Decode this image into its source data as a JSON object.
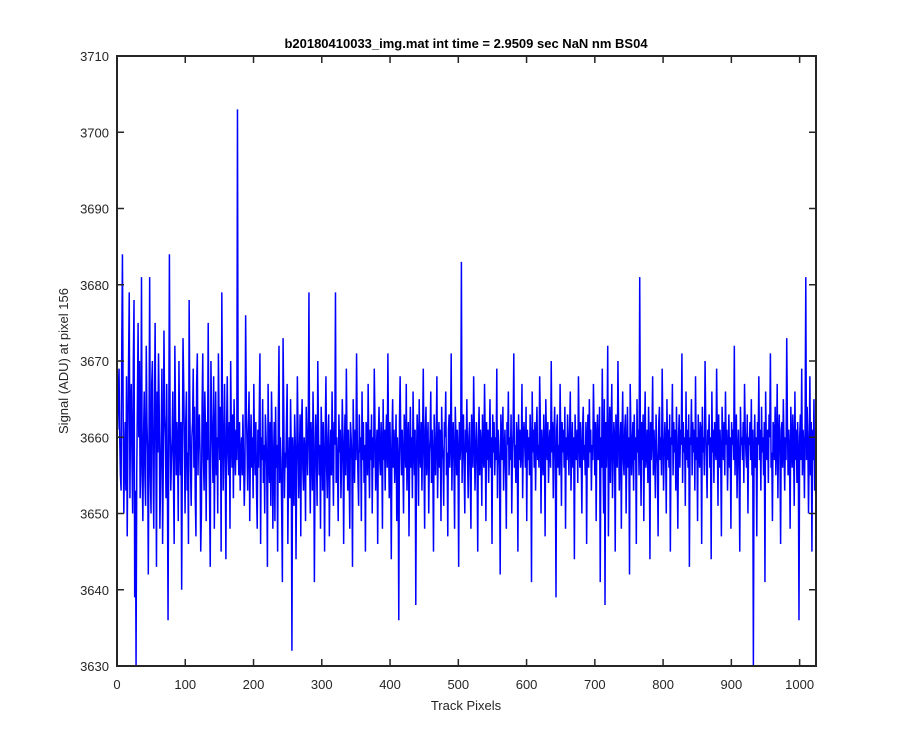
{
  "chart_data": {
    "type": "line",
    "title": "b20180410033_img.mat int time = 2.9509 sec  NaN nm BS04",
    "xlabel": "Track Pixels",
    "ylabel": "Signal (ADU) at pixel 156",
    "xlim": [
      0,
      1024
    ],
    "ylim": [
      3630,
      3710
    ],
    "xticks": [
      0,
      100,
      200,
      300,
      400,
      500,
      600,
      700,
      800,
      900,
      1000
    ],
    "yticks": [
      3630,
      3640,
      3650,
      3660,
      3670,
      3680,
      3690,
      3700,
      3710
    ],
    "grid": false,
    "legend": "none",
    "series": [
      {
        "color": "#0000ff",
        "line_width": 1.5,
        "x_start": 1,
        "x_step": 1,
        "n_points": 1024,
        "values": [
          3661,
          3666,
          3669,
          3660,
          3655,
          3653,
          3672,
          3684,
          3664,
          3650,
          3657,
          3662,
          3653,
          3668,
          3647,
          3660,
          3670,
          3679,
          3652,
          3664,
          3667,
          3657,
          3650,
          3670,
          3678,
          3639,
          3653,
          3630,
          3655,
          3665,
          3675,
          3660,
          3670,
          3652,
          3658,
          3681,
          3655,
          3649,
          3660,
          3666,
          3655,
          3651,
          3672,
          3662,
          3658,
          3642,
          3660,
          3681,
          3655,
          3650,
          3667,
          3670,
          3656,
          3648,
          3663,
          3675,
          3660,
          3643,
          3666,
          3658,
          3671,
          3664,
          3648,
          3654,
          3661,
          3669,
          3646,
          3656,
          3674,
          3663,
          3660,
          3652,
          3667,
          3655,
          3636,
          3659,
          3684,
          3662,
          3653,
          3657,
          3660,
          3666,
          3654,
          3646,
          3672,
          3663,
          3655,
          3662,
          3658,
          3649,
          3670,
          3660,
          3655,
          3662,
          3640,
          3657,
          3673,
          3667,
          3659,
          3650,
          3662,
          3666,
          3653,
          3658,
          3646,
          3678,
          3664,
          3656,
          3651,
          3660,
          3662,
          3669,
          3656,
          3664,
          3652,
          3647,
          3667,
          3671,
          3655,
          3661,
          3663,
          3658,
          3645,
          3650,
          3664,
          3671,
          3657,
          3653,
          3666,
          3661,
          3649,
          3662,
          3657,
          3675,
          3660,
          3652,
          3643,
          3670,
          3663,
          3659,
          3654,
          3668,
          3648,
          3660,
          3666,
          3655,
          3660,
          3650,
          3671,
          3662,
          3657,
          3664,
          3645,
          3679,
          3663,
          3653,
          3659,
          3667,
          3657,
          3644,
          3661,
          3668,
          3658,
          3655,
          3662,
          3648,
          3670,
          3660,
          3656,
          3663,
          3652,
          3665,
          3659,
          3655,
          3661,
          3657,
          3703,
          3660,
          3655,
          3662,
          3653,
          3658,
          3660,
          3655,
          3663,
          3657,
          3651,
          3656,
          3676,
          3664,
          3659,
          3653,
          3661,
          3666,
          3649,
          3658,
          3663,
          3656,
          3660,
          3652,
          3667,
          3659,
          3655,
          3662,
          3653,
          3648,
          3661,
          3656,
          3663,
          3671,
          3646,
          3660,
          3657,
          3665,
          3654,
          3659,
          3650,
          3663,
          3660,
          3656,
          3643,
          3667,
          3658,
          3654,
          3662,
          3651,
          3666,
          3660,
          3648,
          3657,
          3662,
          3649,
          3664,
          3656,
          3659,
          3645,
          3663,
          3672,
          3654,
          3660,
          3657,
          3650,
          3641,
          3673,
          3664,
          3652,
          3658,
          3656,
          3662,
          3667,
          3646,
          3655,
          3660,
          3652,
          3665,
          3658,
          3632,
          3660,
          3657,
          3651,
          3663,
          3659,
          3644,
          3656,
          3668,
          3660,
          3652,
          3657,
          3663,
          3647,
          3661,
          3665,
          3656,
          3653,
          3660,
          3658,
          3649,
          3664,
          3660,
          3655,
          3661,
          3679,
          3657,
          3650,
          3662,
          3659,
          3653,
          3666,
          3660,
          3641,
          3656,
          3663,
          3658,
          3651,
          3670,
          3661,
          3655,
          3659,
          3648,
          3664,
          3660,
          3653,
          3662,
          3657,
          3645,
          3661,
          3668,
          3656,
          3652,
          3660,
          3663,
          3647,
          3657,
          3661,
          3655,
          3666,
          3658,
          3651,
          3662,
          3659,
          3679,
          3654,
          3660,
          3656,
          3649,
          3663,
          3658,
          3661,
          3652,
          3657,
          3665,
          3660,
          3646,
          3658,
          3663,
          3655,
          3669,
          3659,
          3653,
          3661,
          3656,
          3648,
          3662,
          3660,
          3657,
          3643,
          3665,
          3659,
          3654,
          3661,
          3657,
          3671,
          3660,
          3655,
          3651,
          3663,
          3658,
          3660,
          3649,
          3666,
          3657,
          3662,
          3654,
          3659,
          3645,
          3662,
          3661,
          3655,
          3667,
          3658,
          3652,
          3661,
          3657,
          3663,
          3650,
          3660,
          3656,
          3669,
          3662,
          3653,
          3658,
          3661,
          3646,
          3660,
          3664,
          3657,
          3655,
          3662,
          3659,
          3648,
          3665,
          3657,
          3661,
          3653,
          3660,
          3663,
          3656,
          3671,
          3659,
          3652,
          3662,
          3657,
          3644,
          3660,
          3665,
          3656,
          3661,
          3654,
          3658,
          3663,
          3649,
          3660,
          3657,
          3636,
          3662,
          3668,
          3659,
          3655,
          3661,
          3657,
          3650,
          3663,
          3660,
          3656,
          3667,
          3653,
          3659,
          3662,
          3647,
          3658,
          3664,
          3656,
          3660,
          3652,
          3666,
          3659,
          3655,
          3661,
          3638,
          3657,
          3663,
          3660,
          3651,
          3665,
          3658,
          3656,
          3662,
          3653,
          3660,
          3669,
          3657,
          3648,
          3661,
          3664,
          3655,
          3659,
          3662,
          3650,
          3658,
          3660,
          3666,
          3654,
          3661,
          3657,
          3645,
          3663,
          3659,
          3655,
          3660,
          3668,
          3652,
          3658,
          3662,
          3656,
          3661,
          3649,
          3664,
          3659,
          3657,
          3651,
          3662,
          3660,
          3666,
          3655,
          3658,
          3647,
          3661,
          3663,
          3656,
          3660,
          3671,
          3653,
          3659,
          3662,
          3657,
          3648,
          3664,
          3660,
          3655,
          3661,
          3658,
          3643,
          3662,
          3657,
          3659,
          3683,
          3654,
          3660,
          3663,
          3656,
          3650,
          3661,
          3658,
          3665,
          3657,
          3652,
          3660,
          3662,
          3655,
          3648,
          3663,
          3659,
          3656,
          3668,
          3661,
          3653,
          3658,
          3662,
          3657,
          3645,
          3660,
          3664,
          3655,
          3661,
          3659,
          3651,
          3663,
          3658,
          3656,
          3667,
          3660,
          3649,
          3662,
          3657,
          3661,
          3654,
          3659,
          3665,
          3656,
          3660,
          3646,
          3663,
          3658,
          3662,
          3655,
          3660,
          3657,
          3669,
          3652,
          3661,
          3659,
          3656,
          3642,
          3663,
          3660,
          3657,
          3664,
          3653,
          3658,
          3661,
          3656,
          3648,
          3662,
          3659,
          3666,
          3655,
          3660,
          3657,
          3663,
          3650,
          3658,
          3661,
          3671,
          3656,
          3659,
          3654,
          3662,
          3660,
          3645,
          3663,
          3657,
          3661,
          3656,
          3658,
          3667,
          3652,
          3660,
          3662,
          3659,
          3656,
          3664,
          3649,
          3661,
          3657,
          3660,
          3655,
          3663,
          3659,
          3641,
          3666,
          3658,
          3661,
          3656,
          3662,
          3653,
          3660,
          3664,
          3657,
          3659,
          3656,
          3668,
          3662,
          3650,
          3661,
          3658,
          3655,
          3663,
          3659,
          3647,
          3665,
          3660,
          3657,
          3662,
          3654,
          3659,
          3661,
          3656,
          3670,
          3658,
          3662,
          3652,
          3660,
          3664,
          3657,
          3639,
          3661,
          3663,
          3656,
          3659,
          3655,
          3667,
          3660,
          3651,
          3662,
          3658,
          3661,
          3656,
          3664,
          3648,
          3660,
          3657,
          3663,
          3659,
          3655,
          3661,
          3666,
          3653,
          3658,
          3662,
          3656,
          3660,
          3644,
          3663,
          3659,
          3657,
          3661,
          3654,
          3668,
          3660,
          3656,
          3662,
          3658,
          3650,
          3661,
          3664,
          3657,
          3659,
          3655,
          3662,
          3646,
          3660,
          3663,
          3656,
          3665,
          3658,
          3661,
          3653,
          3659,
          3657,
          3667,
          3661,
          3655,
          3662,
          3649,
          3660,
          3663,
          3657,
          3658,
          3664,
          3641,
          3660,
          3656,
          3669,
          3658,
          3650,
          3665,
          3638,
          3662,
          3656,
          3660,
          3672,
          3647,
          3659,
          3664,
          3654,
          3661,
          3667,
          3652,
          3657,
          3662,
          3660,
          3645,
          3663,
          3658,
          3656,
          3670,
          3661,
          3653,
          3659,
          3662,
          3648,
          3660,
          3666,
          3657,
          3655,
          3661,
          3663,
          3650,
          3658,
          3664,
          3656,
          3660,
          3642,
          3667,
          3661,
          3655,
          3659,
          3662,
          3653,
          3663,
          3657,
          3660,
          3646,
          3665,
          3658,
          3661,
          3655,
          3681,
          3659,
          3651,
          3662,
          3657,
          3663,
          3649,
          3660,
          3666,
          3656,
          3658,
          3661,
          3654,
          3664,
          3659,
          3644,
          3662,
          3657,
          3660,
          3668,
          3655,
          3661,
          3658,
          3652,
          3663,
          3659,
          3656,
          3647,
          3662,
          3664,
          3657,
          3660,
          3655,
          3669,
          3661,
          3653,
          3658,
          3662,
          3659,
          3650,
          3665,
          3657,
          3661,
          3656,
          3663,
          3645,
          3660,
          3659,
          3667,
          3655,
          3662,
          3658,
          3661,
          3653,
          3664,
          3657,
          3648,
          3660,
          3663,
          3656,
          3661,
          3659,
          3671,
          3654,
          3662,
          3658,
          3660,
          3651,
          3666,
          3657,
          3661,
          3656,
          3663,
          3643,
          3660,
          3659,
          3665,
          3655,
          3662,
          3658,
          3661,
          3653,
          3668,
          3657,
          3660,
          3649,
          3663,
          3659,
          3656,
          3662,
          3661,
          3646,
          3664,
          3658,
          3660,
          3655,
          3670,
          3662,
          3657,
          3652,
          3661,
          3659,
          3663,
          3656,
          3660,
          3644,
          3666,
          3658,
          3661,
          3654,
          3662,
          3659,
          3657,
          3669,
          3660,
          3651,
          3663,
          3656,
          3661,
          3658,
          3647,
          3664,
          3660,
          3657,
          3662,
          3655,
          3666,
          3659,
          3661,
          3653,
          3658,
          3663,
          3656,
          3660,
          3648,
          3662,
          3659,
          3661,
          3657,
          3672,
          3655,
          3660,
          3663,
          3652,
          3658,
          3661,
          3656,
          3645,
          3664,
          3659,
          3660,
          3657,
          3662,
          3654,
          3667,
          3661,
          3658,
          3656,
          3663,
          3650,
          3660,
          3659,
          3662,
          3657,
          3665,
          3655,
          3661,
          3630,
          3658,
          3663,
          3656,
          3660,
          3647,
          3662,
          3659,
          3668,
          3657,
          3661,
          3653,
          3664,
          3658,
          3660,
          3655,
          3662,
          3641,
          3666,
          3659,
          3657,
          3661,
          3654,
          3663,
          3660,
          3671,
          3656,
          3658,
          3649,
          3662,
          3661,
          3657,
          3664,
          3655,
          3659,
          3667,
          3652,
          3660,
          3663,
          3658,
          3646,
          3661,
          3662,
          3656,
          3665,
          3659,
          3653,
          3660,
          3657,
          3673,
          3662,
          3655,
          3661,
          3658,
          3648,
          3664,
          3660,
          3656,
          3663,
          3659,
          3651,
          3666,
          3657,
          3661,
          3654,
          3662,
          3658,
          3636,
          3660,
          3663,
          3657,
          3669,
          3655,
          3661,
          3659,
          3652,
          3662,
          3681,
          3657,
          3664,
          3660,
          3650,
          3658,
          3668,
          3655,
          3662,
          3645,
          3661,
          3657,
          3665,
          3653,
          3660,
          3659
        ]
      }
    ]
  }
}
